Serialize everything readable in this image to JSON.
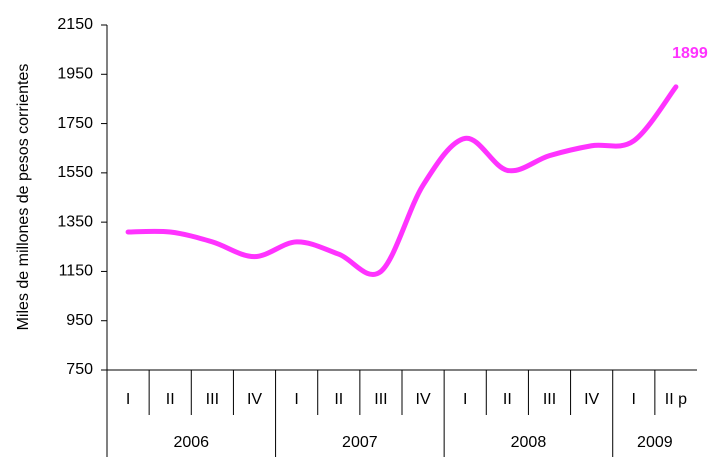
{
  "chart_data": {
    "type": "line",
    "y_label": "Miles de millones de pesos corrientes",
    "groups": [
      {
        "label": "2006",
        "categories": [
          "I",
          "II",
          "III",
          "IV"
        ]
      },
      {
        "label": "2007",
        "categories": [
          "I",
          "II",
          "III",
          "IV"
        ]
      },
      {
        "label": "2008",
        "categories": [
          "I",
          "II",
          "III",
          "IV"
        ]
      },
      {
        "label": "2009",
        "categories": [
          "I",
          "II p"
        ]
      }
    ],
    "values": [
      1310,
      1310,
      1270,
      1210,
      1270,
      1220,
      1150,
      1500,
      1690,
      1560,
      1620,
      1660,
      1680,
      1899
    ],
    "value_labels": [
      null,
      null,
      null,
      null,
      null,
      null,
      null,
      null,
      null,
      null,
      null,
      null,
      null,
      "1899"
    ],
    "color": "#ff33ff",
    "ylim": [
      750,
      2150
    ],
    "yticks": [
      750,
      950,
      1150,
      1350,
      1550,
      1750,
      1950,
      2150
    ]
  }
}
